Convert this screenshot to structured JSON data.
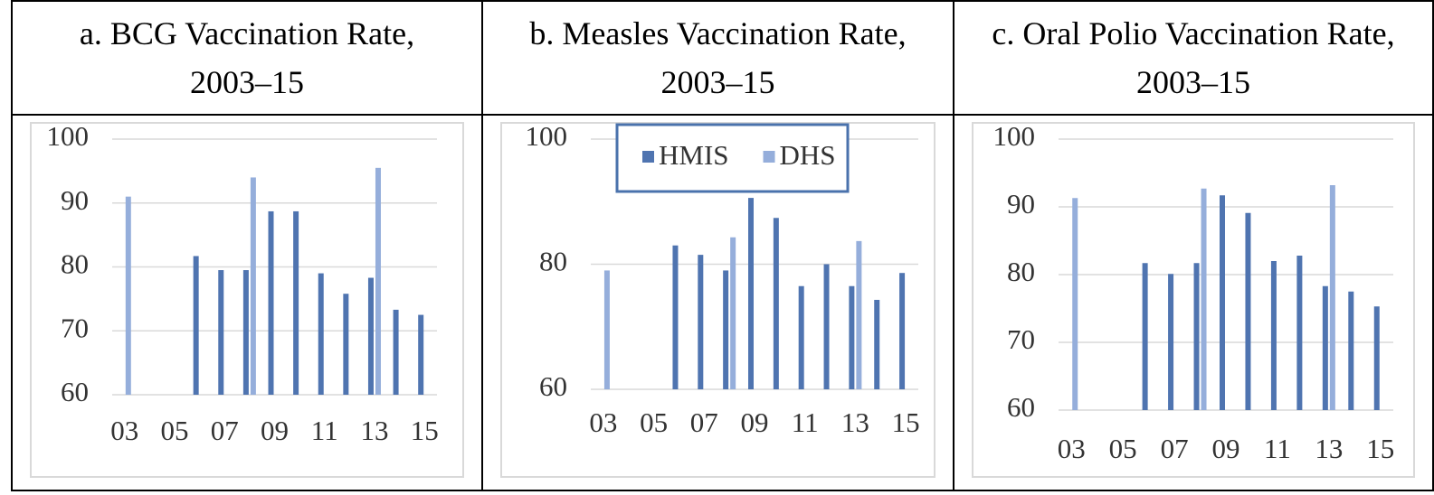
{
  "chart_data": [
    {
      "type": "bar",
      "title": "a. BCG Vaccination Rate, 2003–15",
      "categories": [
        "03",
        null,
        "05",
        null,
        "07",
        null,
        "09",
        null,
        "11",
        null,
        "13",
        null,
        "15"
      ],
      "series": [
        {
          "color": "#4f74b0",
          "values": [
            null,
            null,
            null,
            81.7,
            79.5,
            79.5,
            88.7,
            88.7,
            79,
            75.8,
            78.3,
            73.3,
            72.5
          ]
        },
        {
          "color": "#95aedb",
          "values": [
            91,
            null,
            null,
            null,
            null,
            94,
            null,
            null,
            null,
            null,
            95.5,
            null,
            null
          ]
        }
      ],
      "ylim": [
        60,
        100
      ],
      "yticks": [
        60,
        70,
        80,
        90,
        100
      ],
      "grid": true
    },
    {
      "type": "bar",
      "title": "b. Measles Vaccination Rate, 2003–15",
      "categories": [
        "03",
        null,
        "05",
        null,
        "07",
        null,
        "09",
        null,
        "11",
        null,
        "13",
        null,
        "15"
      ],
      "series": [
        {
          "name": "HMIS",
          "color": "#4f74b0",
          "values": [
            null,
            null,
            null,
            83,
            81.5,
            79,
            90.6,
            87.4,
            76.5,
            80,
            76.5,
            74.3,
            78.6
          ]
        },
        {
          "name": "DHS",
          "color": "#95aedb",
          "values": [
            79,
            null,
            null,
            null,
            null,
            84.3,
            null,
            null,
            null,
            null,
            83.7,
            null,
            null
          ]
        }
      ],
      "ylim": [
        60,
        100
      ],
      "yticks": [
        60,
        80,
        100
      ],
      "grid": true,
      "legend": "top"
    },
    {
      "type": "bar",
      "title": "c. Oral Polio Vaccination Rate, 2003–15",
      "categories": [
        "03",
        null,
        "05",
        null,
        "07",
        null,
        "09",
        null,
        "11",
        null,
        "13",
        null,
        "15"
      ],
      "series": [
        {
          "color": "#4f74b0",
          "values": [
            null,
            null,
            null,
            81.7,
            80.1,
            81.7,
            91.7,
            89.1,
            82,
            82.8,
            78.3,
            77.5,
            75.3
          ]
        },
        {
          "color": "#95aedb",
          "values": [
            91.3,
            null,
            null,
            null,
            null,
            92.7,
            null,
            null,
            null,
            null,
            93.2,
            null,
            null
          ]
        }
      ],
      "ylim": [
        60,
        100
      ],
      "yticks": [
        60,
        70,
        80,
        90,
        100
      ],
      "grid": true
    }
  ]
}
